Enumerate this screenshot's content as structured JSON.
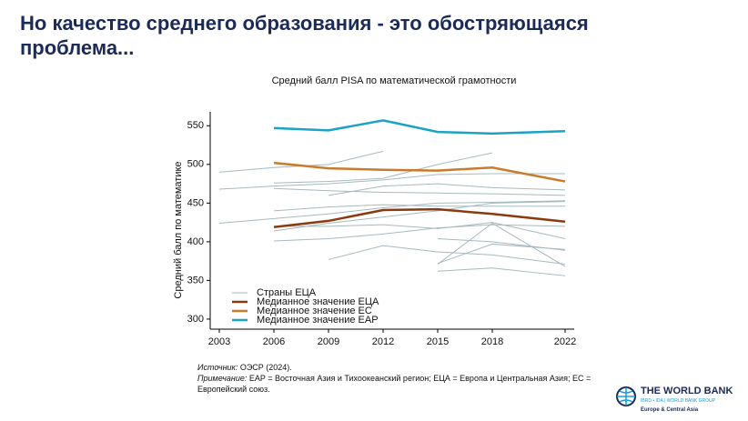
{
  "slide_title": "Но качество среднего образования - это обостряющаяся проблема...",
  "chart_data": {
    "type": "line",
    "title": "Средний балл PISA по математической грамотности",
    "y_label": "Средний балл по математике",
    "x": [
      2003,
      2006,
      2009,
      2012,
      2015,
      2018,
      2022
    ],
    "xlim": [
      2002.5,
      2022.5
    ],
    "xticks": [
      2003,
      2006,
      2009,
      2012,
      2015,
      2018,
      2022
    ],
    "ylim": [
      287,
      568
    ],
    "yticks": [
      300,
      350,
      400,
      450,
      500,
      550
    ],
    "legend": "lower left",
    "countries": {
      "name": "Страны ЕЦА",
      "color": "#a7b9bd",
      "lines": [
        [
          490,
          496,
          500,
          517,
          null,
          null,
          null
        ],
        [
          468,
          472,
          475,
          480,
          487,
          488,
          488
        ],
        [
          424,
          430,
          436,
          444,
          450,
          451,
          453
        ],
        [
          null,
          476,
          478,
          482,
          500,
          515,
          null
        ],
        [
          null,
          469,
          466,
          464,
          463,
          462,
          460
        ],
        [
          null,
          414,
          424,
          432,
          440,
          450,
          452
        ],
        [
          null,
          401,
          404,
          410,
          418,
          422,
          420
        ],
        [
          null,
          null,
          377,
          395,
          387,
          383,
          371
        ],
        [
          null,
          null,
          460,
          472,
          475,
          470,
          467
        ],
        [
          null,
          null,
          null,
          null,
          372,
          397,
          390
        ],
        [
          null,
          null,
          null,
          null,
          404,
          400,
          389
        ],
        [
          null,
          null,
          null,
          null,
          362,
          366,
          356
        ],
        [
          null,
          440,
          445,
          448,
          446,
          446,
          446
        ],
        [
          null,
          null,
          null,
          null,
          371,
          424,
          368
        ],
        [
          null,
          420,
          420,
          422,
          417,
          425,
          404
        ]
      ]
    },
    "series": [
      {
        "name": "Медианное значение ЕЦА",
        "color": "#8a3a0f",
        "values": [
          null,
          419,
          427,
          441,
          442,
          436,
          426
        ]
      },
      {
        "name": "Медианное значение ЕС",
        "color": "#c97a2b",
        "values": [
          null,
          502,
          495,
          493,
          492,
          496,
          478
        ]
      },
      {
        "name": "Медианное значение EAP",
        "color": "#1ba3c6",
        "values": [
          null,
          547,
          544,
          557,
          542,
          540,
          543
        ]
      }
    ]
  },
  "source": {
    "label": "Источник:",
    "text": " ОЭСР (2024)."
  },
  "note": {
    "label": "Примечание:",
    "text": " EAP = Восточная Азия и Тихоокеанский регион; ЕЦА = Европа и Центральная Азия; ЕС = Европейский союз."
  },
  "logo": {
    "name": "THE WORLD BANK",
    "group": "IBRD • IDA | WORLD BANK GROUP",
    "region": "Europe & Central Asia"
  }
}
